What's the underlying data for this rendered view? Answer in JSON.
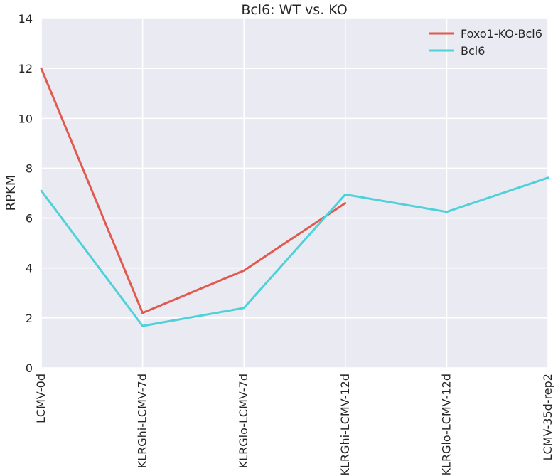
{
  "chart_data": {
    "type": "line",
    "title": "Bcl6: WT vs. KO",
    "xlabel": "",
    "ylabel": "RPKM",
    "ylim": [
      0,
      14
    ],
    "yticks": [
      "0",
      "2",
      "4",
      "6",
      "8",
      "10",
      "12",
      "14"
    ],
    "categories": [
      "LCMV-0d",
      "KLRGhi-LCMV-7d",
      "KLRGlo-LCMV-7d",
      "KLRGhi-LCMV-12d",
      "KLRGlo-LCMV-12d",
      "LCMV-35d-rep2"
    ],
    "grid": true,
    "legend_position": "top-right",
    "series": [
      {
        "name": "Foxo1-KO-Bcl6",
        "color": "#e05a4f",
        "values": [
          12.0,
          2.2,
          3.9,
          6.6,
          null,
          null
        ]
      },
      {
        "name": "Bcl6",
        "color": "#4fd1d9",
        "values": [
          7.1,
          1.68,
          2.4,
          6.95,
          6.25,
          7.62
        ]
      }
    ],
    "colors": {
      "plot_background": "#eaeaf2",
      "grid": "#ffffff"
    }
  }
}
